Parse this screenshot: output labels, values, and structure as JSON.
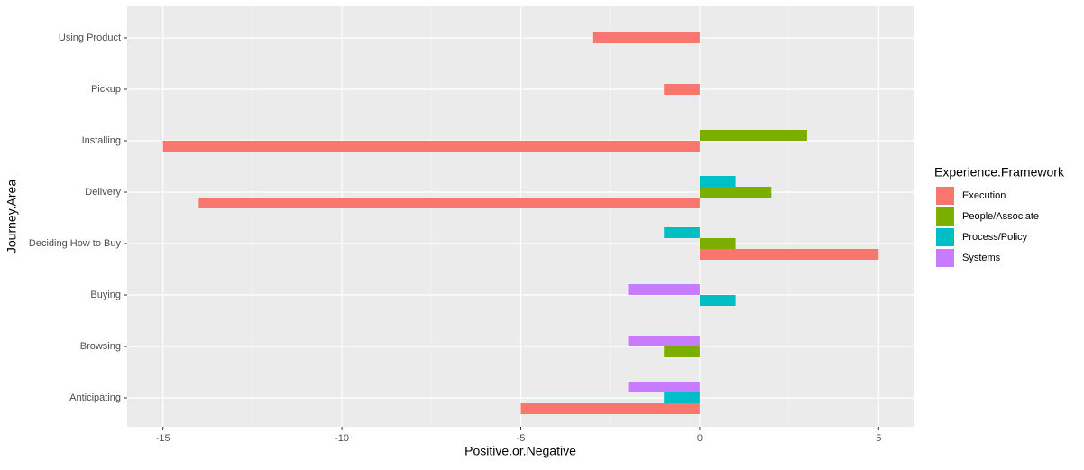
{
  "chart_data": {
    "type": "bar",
    "orientation": "horizontal",
    "x_label": "Positive.or.Negative",
    "y_label": "Journey.Area",
    "categories": [
      "Anticipating",
      "Browsing",
      "Buying",
      "Deciding How to Buy",
      "Delivery",
      "Installing",
      "Pickup",
      "Using Product"
    ],
    "legend_title": "Experience.Framework",
    "legend_position": "right",
    "grid": true,
    "series": [
      {
        "name": "Execution",
        "color": "#F8766D",
        "values": [
          -5,
          null,
          null,
          5,
          -14,
          -15,
          -1,
          -3
        ]
      },
      {
        "name": "People/Associate",
        "color": "#7CAE00",
        "values": [
          null,
          -1,
          null,
          1,
          2,
          3,
          null,
          null
        ]
      },
      {
        "name": "Process/Policy",
        "color": "#00BFC4",
        "values": [
          -1,
          null,
          1,
          -1,
          1,
          null,
          null,
          null
        ]
      },
      {
        "name": "Systems",
        "color": "#C77CFF",
        "values": [
          -2,
          -2,
          -2,
          null,
          null,
          null,
          null,
          null
        ]
      }
    ],
    "xlim": [
      -16,
      6
    ],
    "xticks": [
      -15,
      -10,
      -5,
      0,
      5
    ]
  }
}
